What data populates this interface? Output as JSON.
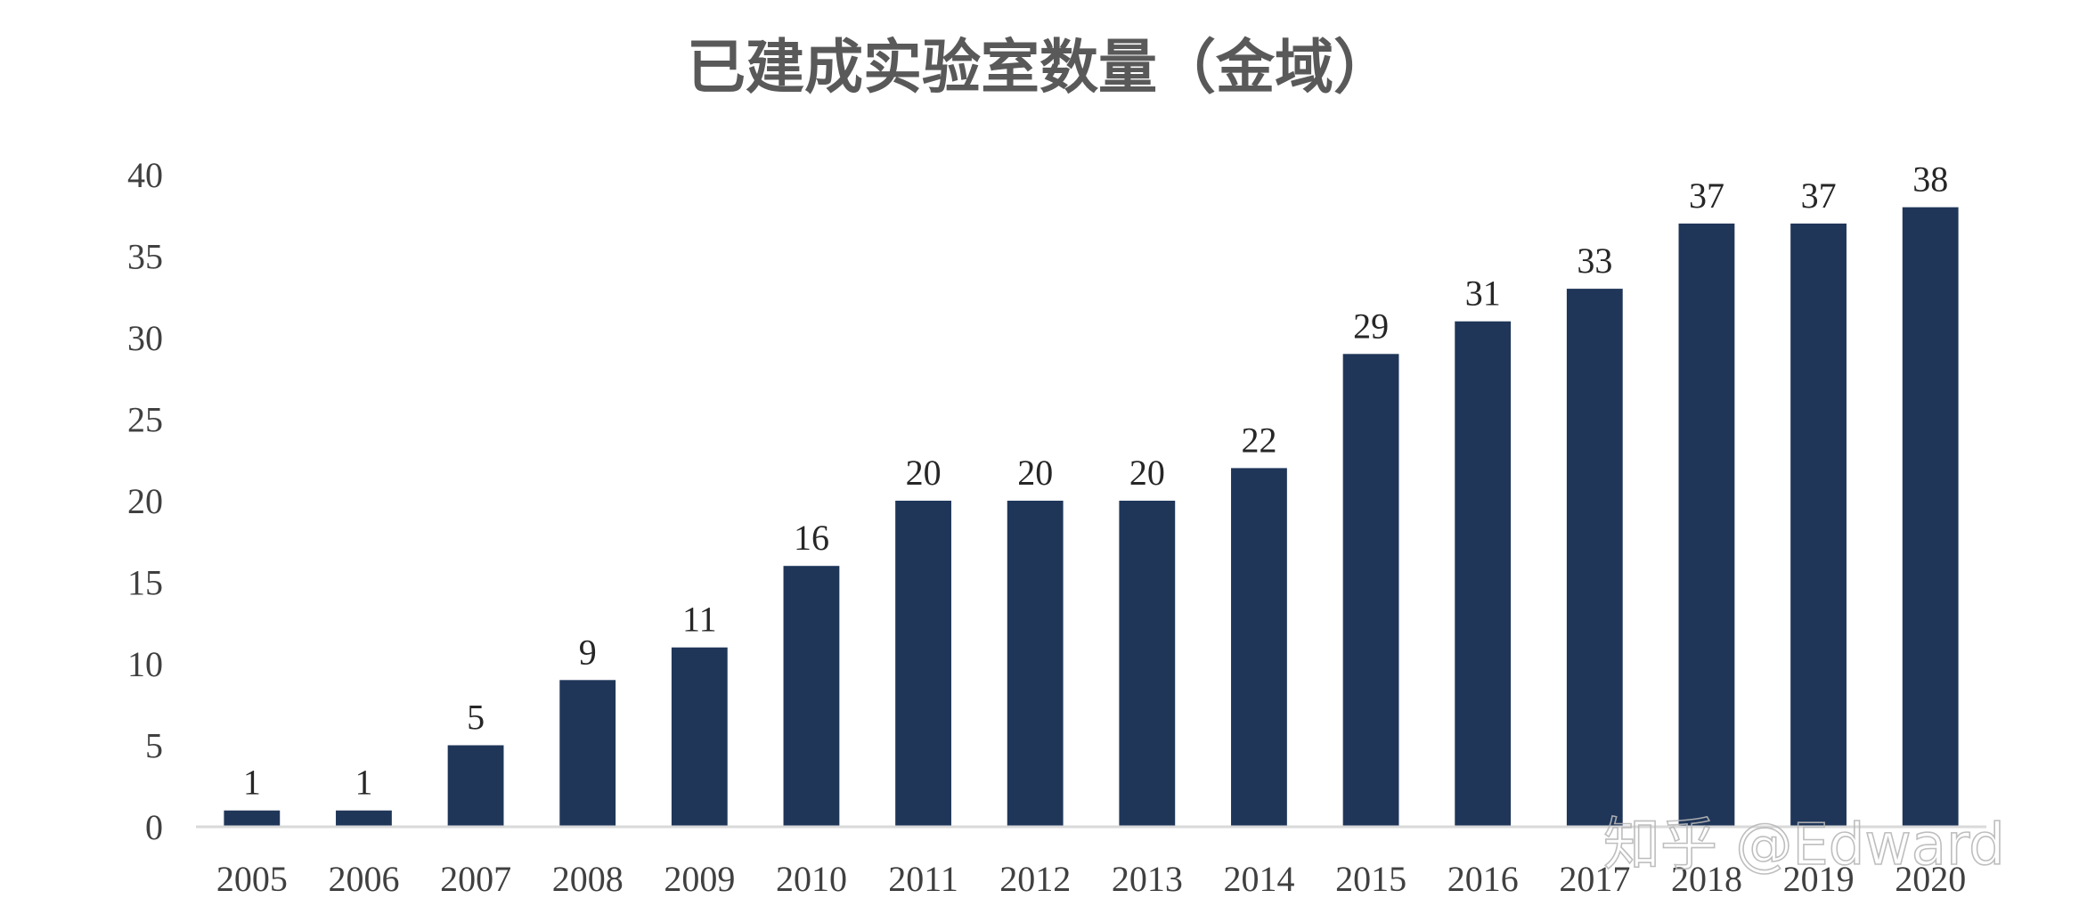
{
  "chart_data": {
    "type": "bar",
    "title": "已建成实验室数量（金域）",
    "xlabel": "",
    "ylabel": "",
    "categories": [
      "2005",
      "2006",
      "2007",
      "2008",
      "2009",
      "2010",
      "2011",
      "2012",
      "2013",
      "2014",
      "2015",
      "2016",
      "2017",
      "2018",
      "2019",
      "2020"
    ],
    "values": [
      1,
      1,
      5,
      9,
      11,
      16,
      20,
      20,
      20,
      22,
      29,
      31,
      33,
      37,
      37,
      38
    ],
    "ylim": [
      0,
      40
    ],
    "yticks": [
      0,
      5,
      10,
      15,
      20,
      25,
      30,
      35,
      40
    ],
    "data_labels": true,
    "grid": false,
    "legend": "none",
    "bar_color": "#1f3659",
    "axis_color": "#d9d9d9"
  },
  "watermark": {
    "text": "知乎 @Edward"
  }
}
